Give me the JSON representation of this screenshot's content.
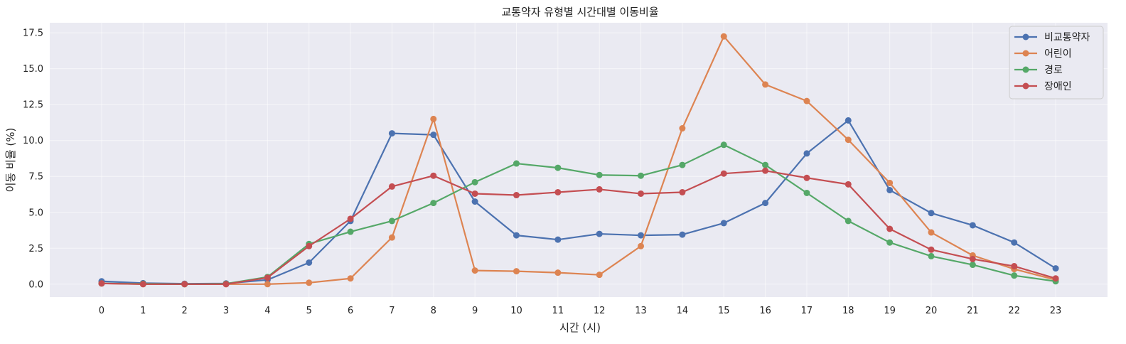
{
  "chart_data": {
    "type": "line",
    "title": "교통약자 유형별 시간대별 이동비율",
    "xlabel": "시간 (시)",
    "ylabel": "이동 비율 (%)",
    "x": [
      0,
      1,
      2,
      3,
      4,
      5,
      6,
      7,
      8,
      9,
      10,
      11,
      12,
      13,
      14,
      15,
      16,
      17,
      18,
      19,
      20,
      21,
      22,
      23
    ],
    "x_tick_labels": [
      "0",
      "1",
      "2",
      "3",
      "4",
      "5",
      "6",
      "7",
      "8",
      "9",
      "10",
      "11",
      "12",
      "13",
      "14",
      "15",
      "16",
      "17",
      "18",
      "19",
      "20",
      "21",
      "22",
      "23"
    ],
    "ylim": [
      -0.9,
      18.2
    ],
    "y_ticks": [
      0.0,
      2.5,
      5.0,
      7.5,
      10.0,
      12.5,
      15.0,
      17.5
    ],
    "y_tick_labels": [
      "0.0",
      "2.5",
      "5.0",
      "7.5",
      "10.0",
      "12.5",
      "15.0",
      "17.5"
    ],
    "grid": true,
    "legend_position": "top-right",
    "series": [
      {
        "name": "비교통약자",
        "color": "#4c72b0",
        "values": [
          0.2,
          0.07,
          0.03,
          0.05,
          0.3,
          1.5,
          4.4,
          10.5,
          10.4,
          5.75,
          3.4,
          3.1,
          3.5,
          3.4,
          3.45,
          4.25,
          5.65,
          9.1,
          11.4,
          6.55,
          4.95,
          4.1,
          2.9,
          1.1
        ]
      },
      {
        "name": "어린이",
        "color": "#dd8452",
        "values": [
          0.05,
          0.0,
          0.0,
          0.0,
          0.0,
          0.1,
          0.4,
          3.25,
          11.5,
          0.95,
          0.9,
          0.8,
          0.65,
          2.65,
          10.85,
          17.25,
          13.9,
          12.75,
          10.05,
          7.05,
          3.6,
          2.0,
          1.05,
          0.3
        ]
      },
      {
        "name": "경로",
        "color": "#55a868",
        "values": [
          0.05,
          0.03,
          0.0,
          0.03,
          0.5,
          2.8,
          3.65,
          4.4,
          5.65,
          7.1,
          8.4,
          8.1,
          7.6,
          7.55,
          8.3,
          9.7,
          8.3,
          6.35,
          4.4,
          2.9,
          1.95,
          1.35,
          0.6,
          0.2
        ]
      },
      {
        "name": "장애인",
        "color": "#c44e52",
        "values": [
          0.05,
          0.0,
          0.0,
          0.0,
          0.45,
          2.65,
          4.55,
          6.8,
          7.55,
          6.3,
          6.2,
          6.4,
          6.6,
          6.3,
          6.4,
          7.7,
          7.9,
          7.4,
          6.95,
          3.85,
          2.4,
          1.75,
          1.25,
          0.4
        ]
      }
    ]
  }
}
